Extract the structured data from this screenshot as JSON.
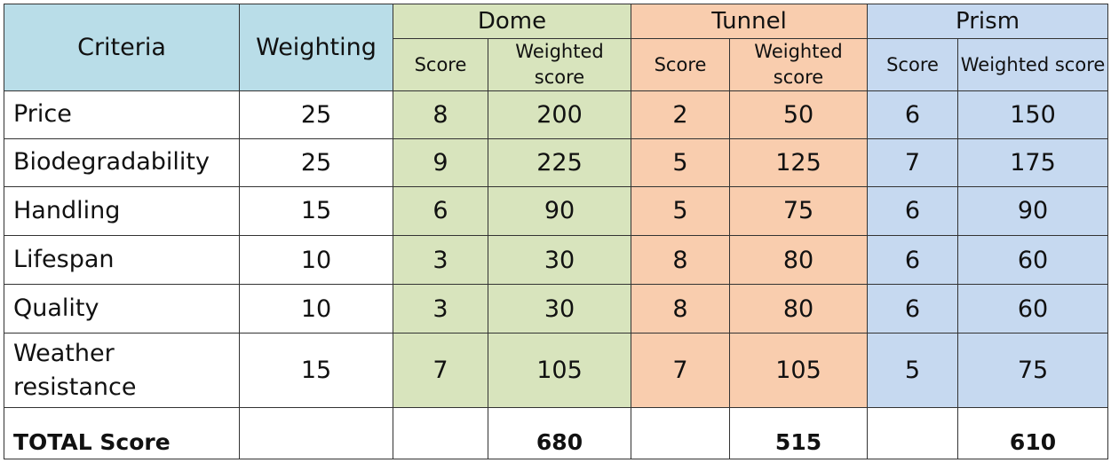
{
  "headers": {
    "criteria": "Criteria",
    "weighting": "Weighting",
    "options": [
      "Dome",
      "Tunnel",
      "Prism"
    ],
    "score": "Score",
    "weighted_score": "Weighted score"
  },
  "rows": [
    {
      "criteria": "Price",
      "weighting": "25",
      "dome_score": "8",
      "dome_weighted": "200",
      "tunnel_score": "2",
      "tunnel_weighted": "50",
      "prism_score": "6",
      "prism_weighted": "150"
    },
    {
      "criteria": "Biodegradability",
      "weighting": "25",
      "dome_score": "9",
      "dome_weighted": "225",
      "tunnel_score": "5",
      "tunnel_weighted": "125",
      "prism_score": "7",
      "prism_weighted": "175"
    },
    {
      "criteria": "Handling",
      "weighting": "15",
      "dome_score": "6",
      "dome_weighted": "90",
      "tunnel_score": "5",
      "tunnel_weighted": "75",
      "prism_score": "6",
      "prism_weighted": "90"
    },
    {
      "criteria": "Lifespan",
      "weighting": "10",
      "dome_score": "3",
      "dome_weighted": "30",
      "tunnel_score": "8",
      "tunnel_weighted": "80",
      "prism_score": "6",
      "prism_weighted": "60"
    },
    {
      "criteria": "Quality",
      "weighting": "10",
      "dome_score": "3",
      "dome_weighted": "30",
      "tunnel_score": "8",
      "tunnel_weighted": "80",
      "prism_score": "6",
      "prism_weighted": "60"
    },
    {
      "criteria": "Weather resistance",
      "weighting": "15",
      "dome_score": "7",
      "dome_weighted": "105",
      "tunnel_score": "7",
      "tunnel_weighted": "105",
      "prism_score": "5",
      "prism_weighted": "75"
    }
  ],
  "total": {
    "label": "TOTAL Score",
    "dome": "680",
    "tunnel": "515",
    "prism": "610"
  },
  "colors": {
    "criteria_header": "#b9dde8",
    "dome": "#d8e4bd",
    "tunnel": "#f9cdae",
    "prism": "#c6d9f0"
  }
}
